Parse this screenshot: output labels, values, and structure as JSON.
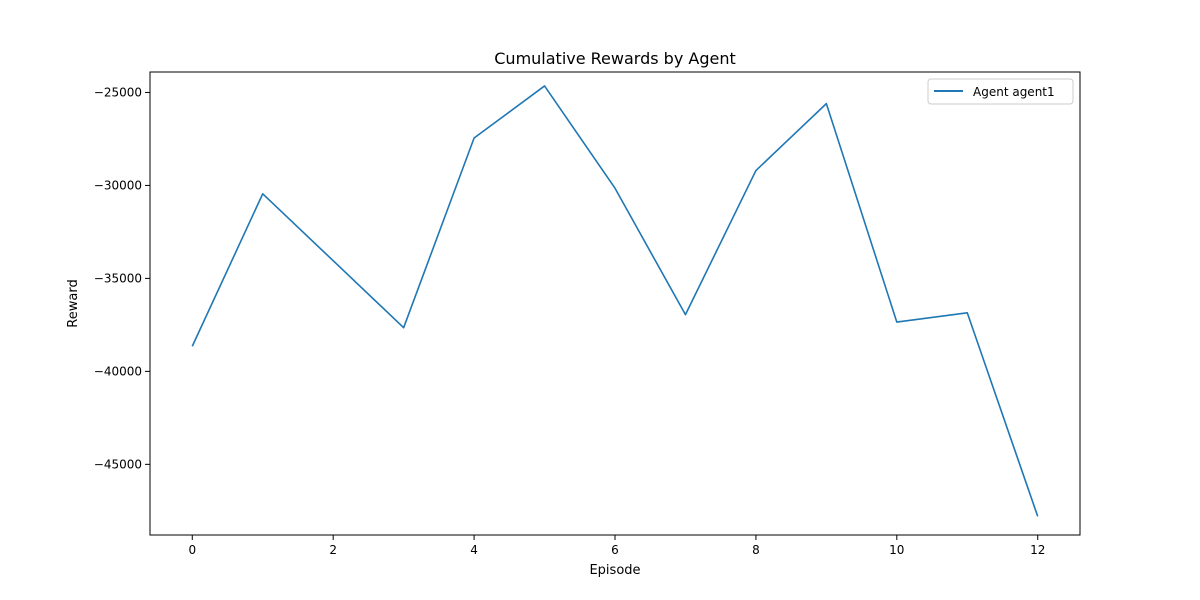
{
  "chart_data": {
    "type": "line",
    "title": "Cumulative Rewards by Agent",
    "xlabel": "Episode",
    "ylabel": "Reward",
    "xlim": [
      -0.6,
      12.6
    ],
    "ylim": [
      -48800,
      -23900
    ],
    "xticks": [
      0,
      2,
      4,
      6,
      8,
      10,
      12
    ],
    "yticks": [
      -45000,
      -40000,
      -35000,
      -30000,
      -25000
    ],
    "xtick_labels": [
      "0",
      "2",
      "4",
      "6",
      "8",
      "10",
      "12"
    ],
    "ytick_labels": [
      "−45000",
      "−40000",
      "−35000",
      "−30000",
      "−25000"
    ],
    "grid": false,
    "legend_position": "top-right",
    "x": [
      0,
      1,
      2,
      3,
      4,
      5,
      6,
      7,
      8,
      9,
      10,
      11,
      12
    ],
    "series": [
      {
        "name": "Agent agent1",
        "color": "#1f77b4",
        "values": [
          -38650,
          -30450,
          -34050,
          -37650,
          -27450,
          -24650,
          -30150,
          -36950,
          -29200,
          -25600,
          -37350,
          -36850,
          -47800
        ]
      }
    ]
  }
}
